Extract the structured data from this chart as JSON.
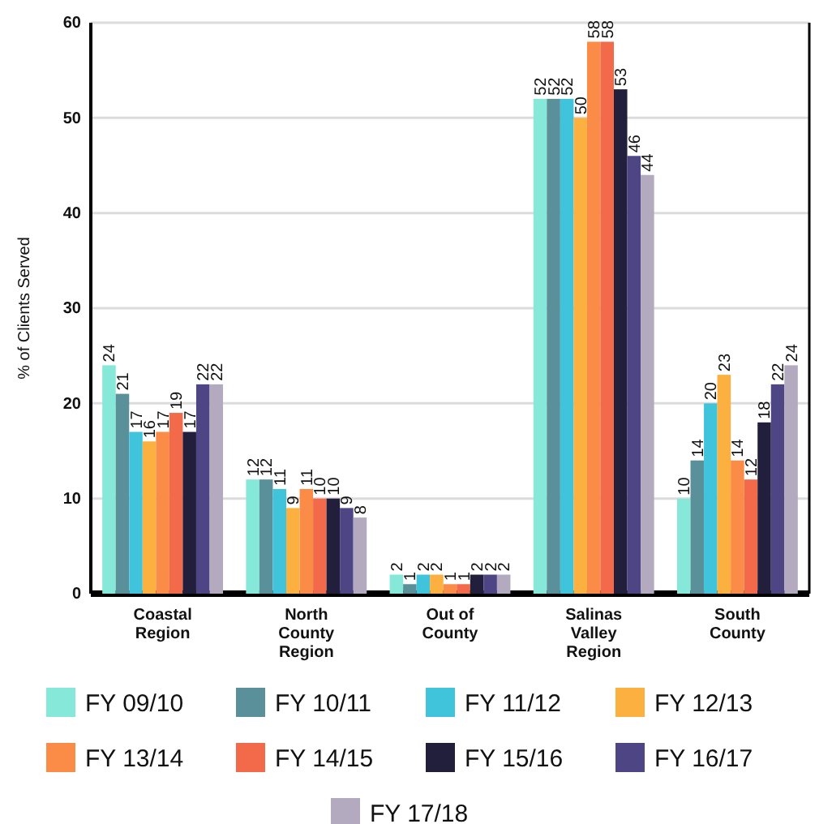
{
  "chart_data": {
    "type": "bar",
    "ylabel": "% of Clients Served",
    "categories": [
      "Coastal Region",
      "North County Region",
      "Out of County",
      "Salinas Valley Region",
      "South County"
    ],
    "series": [
      {
        "name": "FY 09/10",
        "color": "#86e8d8",
        "values": [
          24,
          12,
          2,
          52,
          10
        ]
      },
      {
        "name": "FY 10/11",
        "color": "#5a9099",
        "values": [
          21,
          12,
          1,
          52,
          14
        ]
      },
      {
        "name": "FY 11/12",
        "color": "#40c4dc",
        "values": [
          17,
          11,
          2,
          52,
          20
        ]
      },
      {
        "name": "FY 12/13",
        "color": "#fbb040",
        "values": [
          16,
          9,
          2,
          50,
          23
        ]
      },
      {
        "name": "FY 13/14",
        "color": "#fb8c48",
        "values": [
          17,
          11,
          1,
          58,
          14
        ]
      },
      {
        "name": "FY 14/15",
        "color": "#f26a4a",
        "values": [
          19,
          10,
          1,
          58,
          12
        ]
      },
      {
        "name": "FY 15/16",
        "color": "#221f3c",
        "values": [
          17,
          10,
          2,
          53,
          18
        ]
      },
      {
        "name": "FY 16/17",
        "color": "#4e4585",
        "values": [
          22,
          9,
          2,
          46,
          22
        ]
      },
      {
        "name": "FY 17/18",
        "color": "#b3aabf",
        "values": [
          22,
          8,
          2,
          44,
          24
        ]
      }
    ],
    "ylim": [
      0,
      60
    ],
    "yticks": [
      0,
      10,
      20,
      30,
      40,
      50,
      60
    ],
    "grid": "y",
    "legend": "bottom",
    "data_labels": true
  }
}
